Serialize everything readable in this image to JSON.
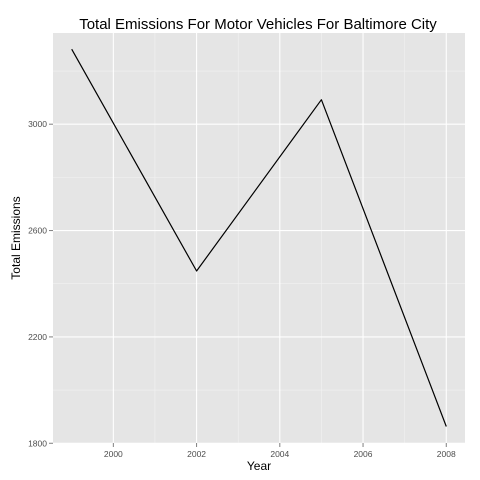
{
  "chart_data": {
    "type": "line",
    "title": "Total Emissions For Motor Vehicles For Baltimore City",
    "xlabel": "Year",
    "ylabel": "Total Emissions",
    "x": [
      1999,
      2002,
      2005,
      2008
    ],
    "series": [
      {
        "values": [
          3282,
          2448,
          3092,
          1863
        ]
      }
    ],
    "xticks": [
      "2000",
      "2002",
      "2004",
      "2006",
      "2008"
    ],
    "yticks": [
      "1800",
      "2200",
      "2600",
      "3000"
    ],
    "xlim": [
      1998.55,
      2008.45
    ],
    "ylim": [
      1801,
      3343
    ],
    "grid": true,
    "legend": "none",
    "colors": {
      "panel_background": "#e5e5e5",
      "grid_major": "#ffffff",
      "grid_minor": "#f2f2f2",
      "line": "#000000",
      "tick": "#7f7f7f"
    }
  }
}
